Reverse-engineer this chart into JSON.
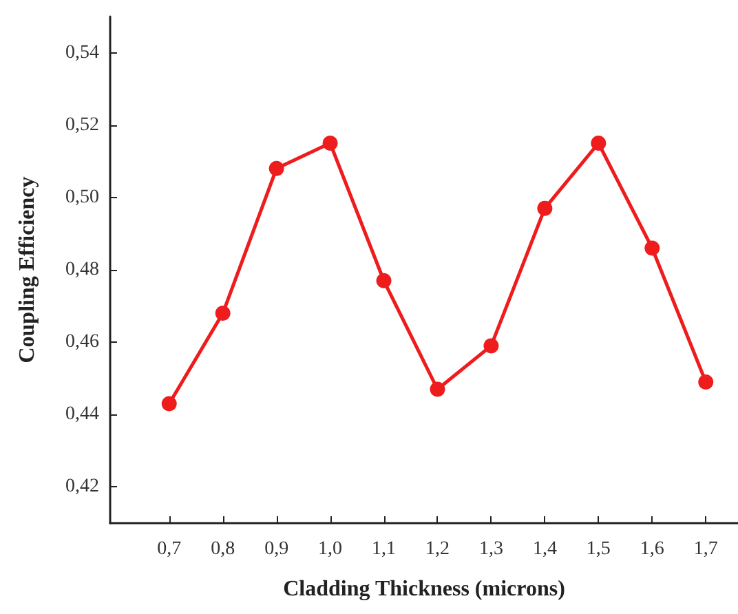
{
  "chart_data": {
    "type": "line",
    "xlabel": "Cladding Thickness (microns)",
    "ylabel": "Coupling Efficiency",
    "x": [
      0.7,
      0.8,
      0.9,
      1.0,
      1.1,
      1.2,
      1.3,
      1.4,
      1.5,
      1.6,
      1.7
    ],
    "series": [
      {
        "color": "#ee1c1c",
        "values": [
          0.443,
          0.468,
          0.508,
          0.515,
          0.477,
          0.447,
          0.459,
          0.497,
          0.515,
          0.486,
          0.449
        ]
      }
    ],
    "xlim": [
      0.59,
      1.76
    ],
    "xticks": [
      {
        "value": 0.7,
        "label": "0,7"
      },
      {
        "value": 0.8,
        "label": "0,8"
      },
      {
        "value": 0.9,
        "label": "0,9"
      },
      {
        "value": 1.0,
        "label": "1,0"
      },
      {
        "value": 1.1,
        "label": "1,1"
      },
      {
        "value": 1.2,
        "label": "1,2"
      },
      {
        "value": 1.3,
        "label": "1,3"
      },
      {
        "value": 1.4,
        "label": "1,4"
      },
      {
        "value": 1.5,
        "label": "1,5"
      },
      {
        "value": 1.6,
        "label": "1,6"
      },
      {
        "value": 1.7,
        "label": "1,7"
      }
    ],
    "ylim": [
      0.41,
      0.55
    ],
    "yticks": [
      {
        "value": 0.42,
        "label": "0,42"
      },
      {
        "value": 0.44,
        "label": "0,44"
      },
      {
        "value": 0.46,
        "label": "0,46"
      },
      {
        "value": 0.48,
        "label": "0,48"
      },
      {
        "value": 0.5,
        "label": "0,50"
      },
      {
        "value": 0.52,
        "label": "0,52"
      },
      {
        "value": 0.54,
        "label": "0,54"
      }
    ],
    "grid": false,
    "marker": "circle",
    "line_style": "solid"
  }
}
